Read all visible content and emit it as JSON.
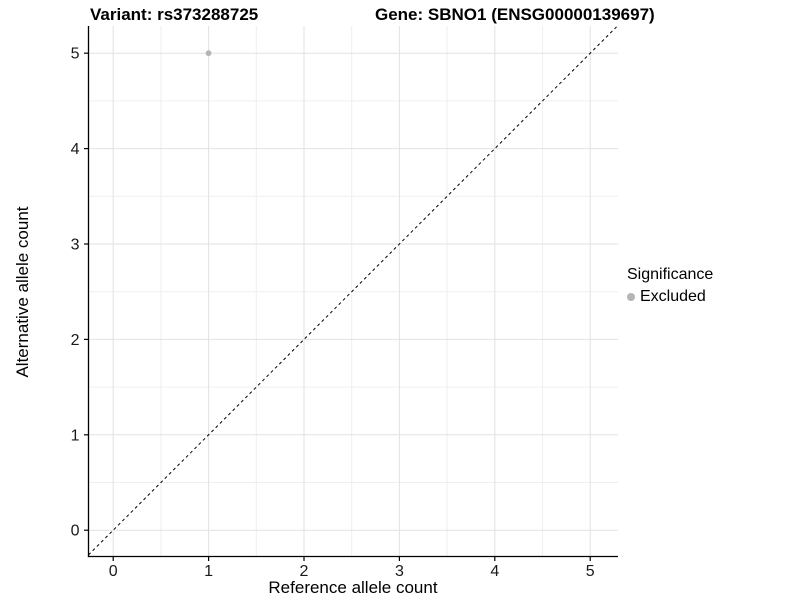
{
  "titles": {
    "left": "Variant: rs373288725",
    "right": "Gene: SBNO1 (ENSG00000139697)"
  },
  "chart_data": {
    "type": "scatter",
    "xlabel": "Reference allele count",
    "ylabel": "Alternative allele count",
    "x_ticks": [
      0,
      1,
      2,
      3,
      4,
      5
    ],
    "y_ticks": [
      0,
      1,
      2,
      3,
      4,
      5
    ],
    "xlim": [
      -0.26,
      5.29
    ],
    "ylim": [
      -0.26,
      5.29
    ],
    "grid": {
      "major": true,
      "minor": true,
      "minor_step": 0.5
    },
    "identity_line": {
      "equation": "y = x",
      "style": "dashed",
      "from": [
        -0.26,
        -0.26
      ],
      "to": [
        5.29,
        5.29
      ]
    },
    "series": [
      {
        "name": "Excluded",
        "color": "#b5b5b5",
        "points": [
          {
            "x": 1,
            "y": 5
          }
        ]
      }
    ],
    "legend": {
      "title": "Significance",
      "position": "right",
      "items": [
        {
          "label": "Excluded",
          "color": "#b5b5b5",
          "marker": "dot"
        }
      ]
    }
  },
  "colors": {
    "background": "#ffffff",
    "grid_major": "#e2e2e2",
    "grid_minor": "#efefef",
    "axis_line": "#000000",
    "tick": "#000000",
    "tick_label": "#1a1a1a",
    "identity_line": "#000000",
    "point": "#b5b5b5"
  }
}
